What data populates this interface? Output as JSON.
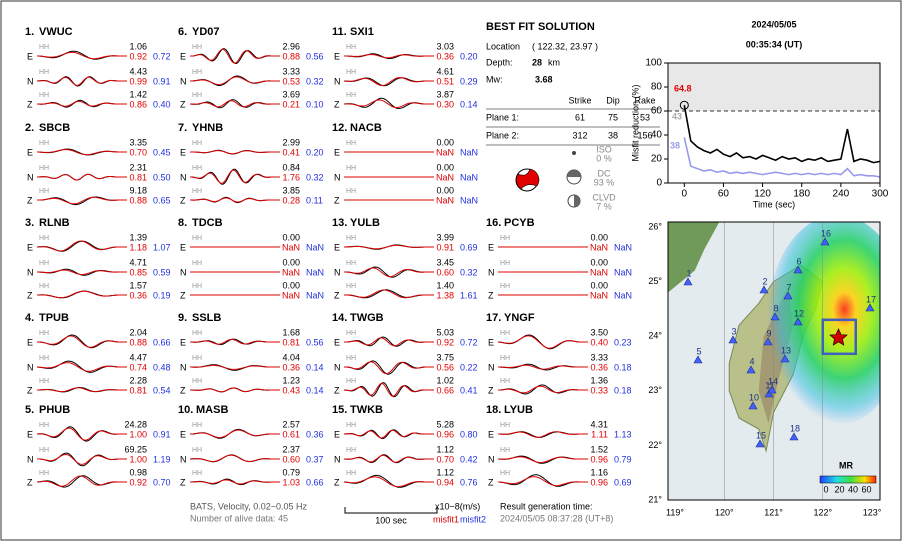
{
  "header": {
    "date": "2024/05/05",
    "time": "00:35:34  (UT)"
  },
  "stations": [
    {
      "label": "1.",
      "name": "VWUC",
      "components": [
        {
          "comp": "E",
          "channel": "HH",
          "amplitude": "1.06",
          "misfit1": "0.92",
          "misfit2": "0.72"
        },
        {
          "comp": "N",
          "channel": "HH",
          "amplitude": "4.43",
          "misfit1": "0.99",
          "misfit2": "0.91"
        },
        {
          "comp": "Z",
          "channel": "HH",
          "amplitude": "1.42",
          "misfit1": "0.86",
          "misfit2": "0.40"
        }
      ]
    },
    {
      "label": "2.",
      "name": "SBCB",
      "components": [
        {
          "comp": "E",
          "channel": "HH",
          "amplitude": "3.35",
          "misfit1": "0.70",
          "misfit2": "0.45"
        },
        {
          "comp": "N",
          "channel": "HH",
          "amplitude": "2.31",
          "misfit1": "0.81",
          "misfit2": "0.50"
        },
        {
          "comp": "Z",
          "channel": "HH",
          "amplitude": "9.18",
          "misfit1": "0.88",
          "misfit2": "0.65"
        }
      ]
    },
    {
      "label": "3.",
      "name": "RLNB",
      "components": [
        {
          "comp": "E",
          "channel": "HH",
          "amplitude": "1.39",
          "misfit1": "1.18",
          "misfit2": "1.07"
        },
        {
          "comp": "N",
          "channel": "HH",
          "amplitude": "4.71",
          "misfit1": "0.85",
          "misfit2": "0.59"
        },
        {
          "comp": "Z",
          "channel": "HH",
          "amplitude": "1.57",
          "misfit1": "0.36",
          "misfit2": "0.19"
        }
      ]
    },
    {
      "label": "4.",
      "name": "TPUB",
      "components": [
        {
          "comp": "E",
          "channel": "HH",
          "amplitude": "2.04",
          "misfit1": "0.88",
          "misfit2": "0.66"
        },
        {
          "comp": "N",
          "channel": "HH",
          "amplitude": "4.47",
          "misfit1": "0.74",
          "misfit2": "0.48"
        },
        {
          "comp": "Z",
          "channel": "HH",
          "amplitude": "2.28",
          "misfit1": "0.81",
          "misfit2": "0.54"
        }
      ]
    },
    {
      "label": "5.",
      "name": "PHUB",
      "components": [
        {
          "comp": "E",
          "channel": "HH",
          "amplitude": "24.28",
          "misfit1": "1.00",
          "misfit2": "0.91"
        },
        {
          "comp": "N",
          "channel": "HH",
          "amplitude": "69.25",
          "misfit1": "1.00",
          "misfit2": "1.19"
        },
        {
          "comp": "Z",
          "channel": "HH",
          "amplitude": "0.98",
          "misfit1": "0.92",
          "misfit2": "0.70"
        }
      ]
    },
    {
      "label": "6.",
      "name": "YD07",
      "components": [
        {
          "comp": "E",
          "channel": "HH",
          "amplitude": "2.96",
          "misfit1": "0.88",
          "misfit2": "0.56"
        },
        {
          "comp": "N",
          "channel": "HH",
          "amplitude": "3.33",
          "misfit1": "0.53",
          "misfit2": "0.32"
        },
        {
          "comp": "Z",
          "channel": "HH",
          "amplitude": "3.69",
          "misfit1": "0.21",
          "misfit2": "0.10"
        }
      ]
    },
    {
      "label": "7.",
      "name": "YHNB",
      "components": [
        {
          "comp": "E",
          "channel": "HH",
          "amplitude": "2.99",
          "misfit1": "0.41",
          "misfit2": "0.20"
        },
        {
          "comp": "N",
          "channel": "HH",
          "amplitude": "0.84",
          "misfit1": "1.76",
          "misfit2": "0.32"
        },
        {
          "comp": "Z",
          "channel": "HH",
          "amplitude": "3.85",
          "misfit1": "0.28",
          "misfit2": "0.11"
        }
      ]
    },
    {
      "label": "8.",
      "name": "TDCB",
      "components": [
        {
          "comp": "E",
          "channel": "HH",
          "amplitude": "0.00",
          "misfit1": "NaN",
          "misfit2": "NaN"
        },
        {
          "comp": "N",
          "channel": "HH",
          "amplitude": "0.00",
          "misfit1": "NaN",
          "misfit2": "NaN"
        },
        {
          "comp": "Z",
          "channel": "HH",
          "amplitude": "0.00",
          "misfit1": "NaN",
          "misfit2": "NaN"
        }
      ]
    },
    {
      "label": "9.",
      "name": "SSLB",
      "components": [
        {
          "comp": "E",
          "channel": "HH",
          "amplitude": "1.68",
          "misfit1": "0.81",
          "misfit2": "0.56"
        },
        {
          "comp": "N",
          "channel": "HH",
          "amplitude": "4.04",
          "misfit1": "0.36",
          "misfit2": "0.14"
        },
        {
          "comp": "Z",
          "channel": "HH",
          "amplitude": "1.23",
          "misfit1": "0.43",
          "misfit2": "0.14"
        }
      ]
    },
    {
      "label": "10.",
      "name": "MASB",
      "components": [
        {
          "comp": "E",
          "channel": "HH",
          "amplitude": "2.57",
          "misfit1": "0.61",
          "misfit2": "0.36"
        },
        {
          "comp": "N",
          "channel": "HH",
          "amplitude": "2.37",
          "misfit1": "0.60",
          "misfit2": "0.37"
        },
        {
          "comp": "Z",
          "channel": "HH",
          "amplitude": "0.79",
          "misfit1": "1.03",
          "misfit2": "0.66"
        }
      ]
    },
    {
      "label": "11.",
      "name": "SXI1",
      "components": [
        {
          "comp": "E",
          "channel": "HH",
          "amplitude": "3.03",
          "misfit1": "0.36",
          "misfit2": "0.20"
        },
        {
          "comp": "N",
          "channel": "HH",
          "amplitude": "4.61",
          "misfit1": "0.51",
          "misfit2": "0.29"
        },
        {
          "comp": "Z",
          "channel": "HH",
          "amplitude": "3.87",
          "misfit1": "0.30",
          "misfit2": "0.14"
        }
      ]
    },
    {
      "label": "12.",
      "name": "NACB",
      "components": [
        {
          "comp": "E",
          "channel": "HH",
          "amplitude": "0.00",
          "misfit1": "NaN",
          "misfit2": "NaN"
        },
        {
          "comp": "N",
          "channel": "HH",
          "amplitude": "0.00",
          "misfit1": "NaN",
          "misfit2": "NaN"
        },
        {
          "comp": "Z",
          "channel": "HH",
          "amplitude": "0.00",
          "misfit1": "NaN",
          "misfit2": "NaN"
        }
      ]
    },
    {
      "label": "13.",
      "name": "YULB",
      "components": [
        {
          "comp": "E",
          "channel": "HH",
          "amplitude": "3.99",
          "misfit1": "0.91",
          "misfit2": "0.69"
        },
        {
          "comp": "N",
          "channel": "HH",
          "amplitude": "3.45",
          "misfit1": "0.60",
          "misfit2": "0.32"
        },
        {
          "comp": "Z",
          "channel": "HH",
          "amplitude": "1.40",
          "misfit1": "1.38",
          "misfit2": "1.61"
        }
      ]
    },
    {
      "label": "14.",
      "name": "TWGB",
      "components": [
        {
          "comp": "E",
          "channel": "HH",
          "amplitude": "5.03",
          "misfit1": "0.92",
          "misfit2": "0.72"
        },
        {
          "comp": "N",
          "channel": "HH",
          "amplitude": "3.75",
          "misfit1": "0.56",
          "misfit2": "0.22"
        },
        {
          "comp": "Z",
          "channel": "HH",
          "amplitude": "1.02",
          "misfit1": "0.66",
          "misfit2": "0.41"
        }
      ]
    },
    {
      "label": "15.",
      "name": "TWKB",
      "components": [
        {
          "comp": "E",
          "channel": "HH",
          "amplitude": "5.28",
          "misfit1": "0.96",
          "misfit2": "0.80"
        },
        {
          "comp": "N",
          "channel": "HH",
          "amplitude": "1.12",
          "misfit1": "0.70",
          "misfit2": "0.42"
        },
        {
          "comp": "Z",
          "channel": "HH",
          "amplitude": "1.12",
          "misfit1": "0.94",
          "misfit2": "0.76"
        }
      ]
    },
    {
      "label": "16.",
      "name": "PCYB",
      "components": [
        {
          "comp": "E",
          "channel": "HH",
          "amplitude": "0.00",
          "misfit1": "NaN",
          "misfit2": "NaN"
        },
        {
          "comp": "N",
          "channel": "HH",
          "amplitude": "0.00",
          "misfit1": "NaN",
          "misfit2": "NaN"
        },
        {
          "comp": "Z",
          "channel": "HH",
          "amplitude": "0.00",
          "misfit1": "NaN",
          "misfit2": "NaN"
        }
      ]
    },
    {
      "label": "17.",
      "name": "YNGF",
      "components": [
        {
          "comp": "E",
          "channel": "HH",
          "amplitude": "3.50",
          "misfit1": "0.40",
          "misfit2": "0.23"
        },
        {
          "comp": "N",
          "channel": "HH",
          "amplitude": "3.33",
          "misfit1": "0.36",
          "misfit2": "0.18"
        },
        {
          "comp": "Z",
          "channel": "HH",
          "amplitude": "1.36",
          "misfit1": "0.33",
          "misfit2": "0.18"
        }
      ]
    },
    {
      "label": "18.",
      "name": "LYUB",
      "components": [
        {
          "comp": "E",
          "channel": "HH",
          "amplitude": "4.31",
          "misfit1": "1.11",
          "misfit2": "1.13"
        },
        {
          "comp": "N",
          "channel": "HH",
          "amplitude": "1.52",
          "misfit1": "0.96",
          "misfit2": "0.79"
        },
        {
          "comp": "Z",
          "channel": "HH",
          "amplitude": "1.16",
          "misfit1": "0.96",
          "misfit2": "0.69"
        }
      ]
    }
  ],
  "solution": {
    "title": "BEST FIT SOLUTION",
    "location_label": "Location",
    "location": "( 122.32, 23.97 )",
    "depth_label": "Depth:",
    "depth": "28",
    "depth_unit": "km",
    "mw_label": "Mw:",
    "mw": "3.68",
    "columns": [
      "Strike",
      "Dip",
      "Rake"
    ],
    "planes": [
      {
        "label": "Plane 1:",
        "strike": "61",
        "dip": "75",
        "rake": "53"
      },
      {
        "label": "Plane 2:",
        "strike": "312",
        "dip": "38",
        "rake": "156"
      }
    ],
    "components": [
      {
        "name": "ISO",
        "percent": "0 %"
      },
      {
        "name": "DC",
        "percent": "93 %"
      },
      {
        "name": "CLVD",
        "percent": "7 %"
      }
    ]
  },
  "footer": {
    "source": "BATS, Velocity, 0.02~0.05 Hz",
    "alive": "Number of alive data: 45",
    "scale": "100 sec",
    "units": "x10−8(m/s)",
    "misfit1": "misfit1",
    "misfit2": "misfit2",
    "result_label": "Result generation time:",
    "result_time": "2024/05/05 08:37:28 (UT+8)"
  },
  "chart_data": {
    "type": "line",
    "xlabel": "Time (sec)",
    "ylabel": "Misfit reduction (%)",
    "x": [
      0,
      10,
      20,
      30,
      40,
      50,
      60,
      70,
      80,
      90,
      100,
      110,
      120,
      130,
      140,
      150,
      160,
      170,
      180,
      190,
      200,
      210,
      220,
      230,
      240,
      250,
      260,
      270,
      280,
      290,
      300
    ],
    "series": [
      {
        "name": "misfit1",
        "color": "#000000",
        "values": [
          64.8,
          35,
          30,
          27,
          25,
          28,
          24,
          22,
          25,
          21,
          22,
          20,
          23,
          21,
          19,
          22,
          20,
          21,
          18,
          20,
          19,
          21,
          18,
          19,
          20,
          45,
          18,
          20,
          19,
          17,
          18
        ]
      },
      {
        "name": "misfit2",
        "color": "#9999ee",
        "values": [
          38,
          14,
          12,
          10,
          11,
          9,
          10,
          8,
          9,
          8,
          9,
          8,
          7,
          8,
          9,
          8,
          7,
          8,
          7,
          8,
          7,
          8,
          7,
          8,
          7,
          12,
          6,
          7,
          6,
          6,
          5
        ]
      }
    ],
    "annotations": [
      {
        "text": "64.8",
        "color": "#e00000"
      },
      {
        "text": "43",
        "color": "#aaaaaa"
      },
      {
        "text": "38",
        "color": "#9999ee"
      }
    ],
    "threshold": 60,
    "xlim": [
      -25,
      300
    ],
    "ylim": [
      0,
      100
    ],
    "xticks": [
      0,
      60,
      120,
      180,
      240,
      300
    ],
    "yticks": [
      0,
      20,
      40,
      60,
      80,
      100
    ]
  },
  "map": {
    "lon_labels": [
      "119°",
      "120°",
      "121°",
      "122°",
      "123°"
    ],
    "lat_labels": [
      "26°",
      "25°",
      "24°",
      "23°",
      "22°",
      "21°"
    ],
    "station_labels": [
      "1",
      "2",
      "3",
      "4",
      "5",
      "6",
      "7",
      "8",
      "9",
      "10",
      "11",
      "12",
      "13",
      "14",
      "15",
      "16",
      "17",
      "18"
    ],
    "colorbar": {
      "title": "MR",
      "ticks": [
        "0",
        "20",
        "40",
        "60"
      ]
    }
  }
}
